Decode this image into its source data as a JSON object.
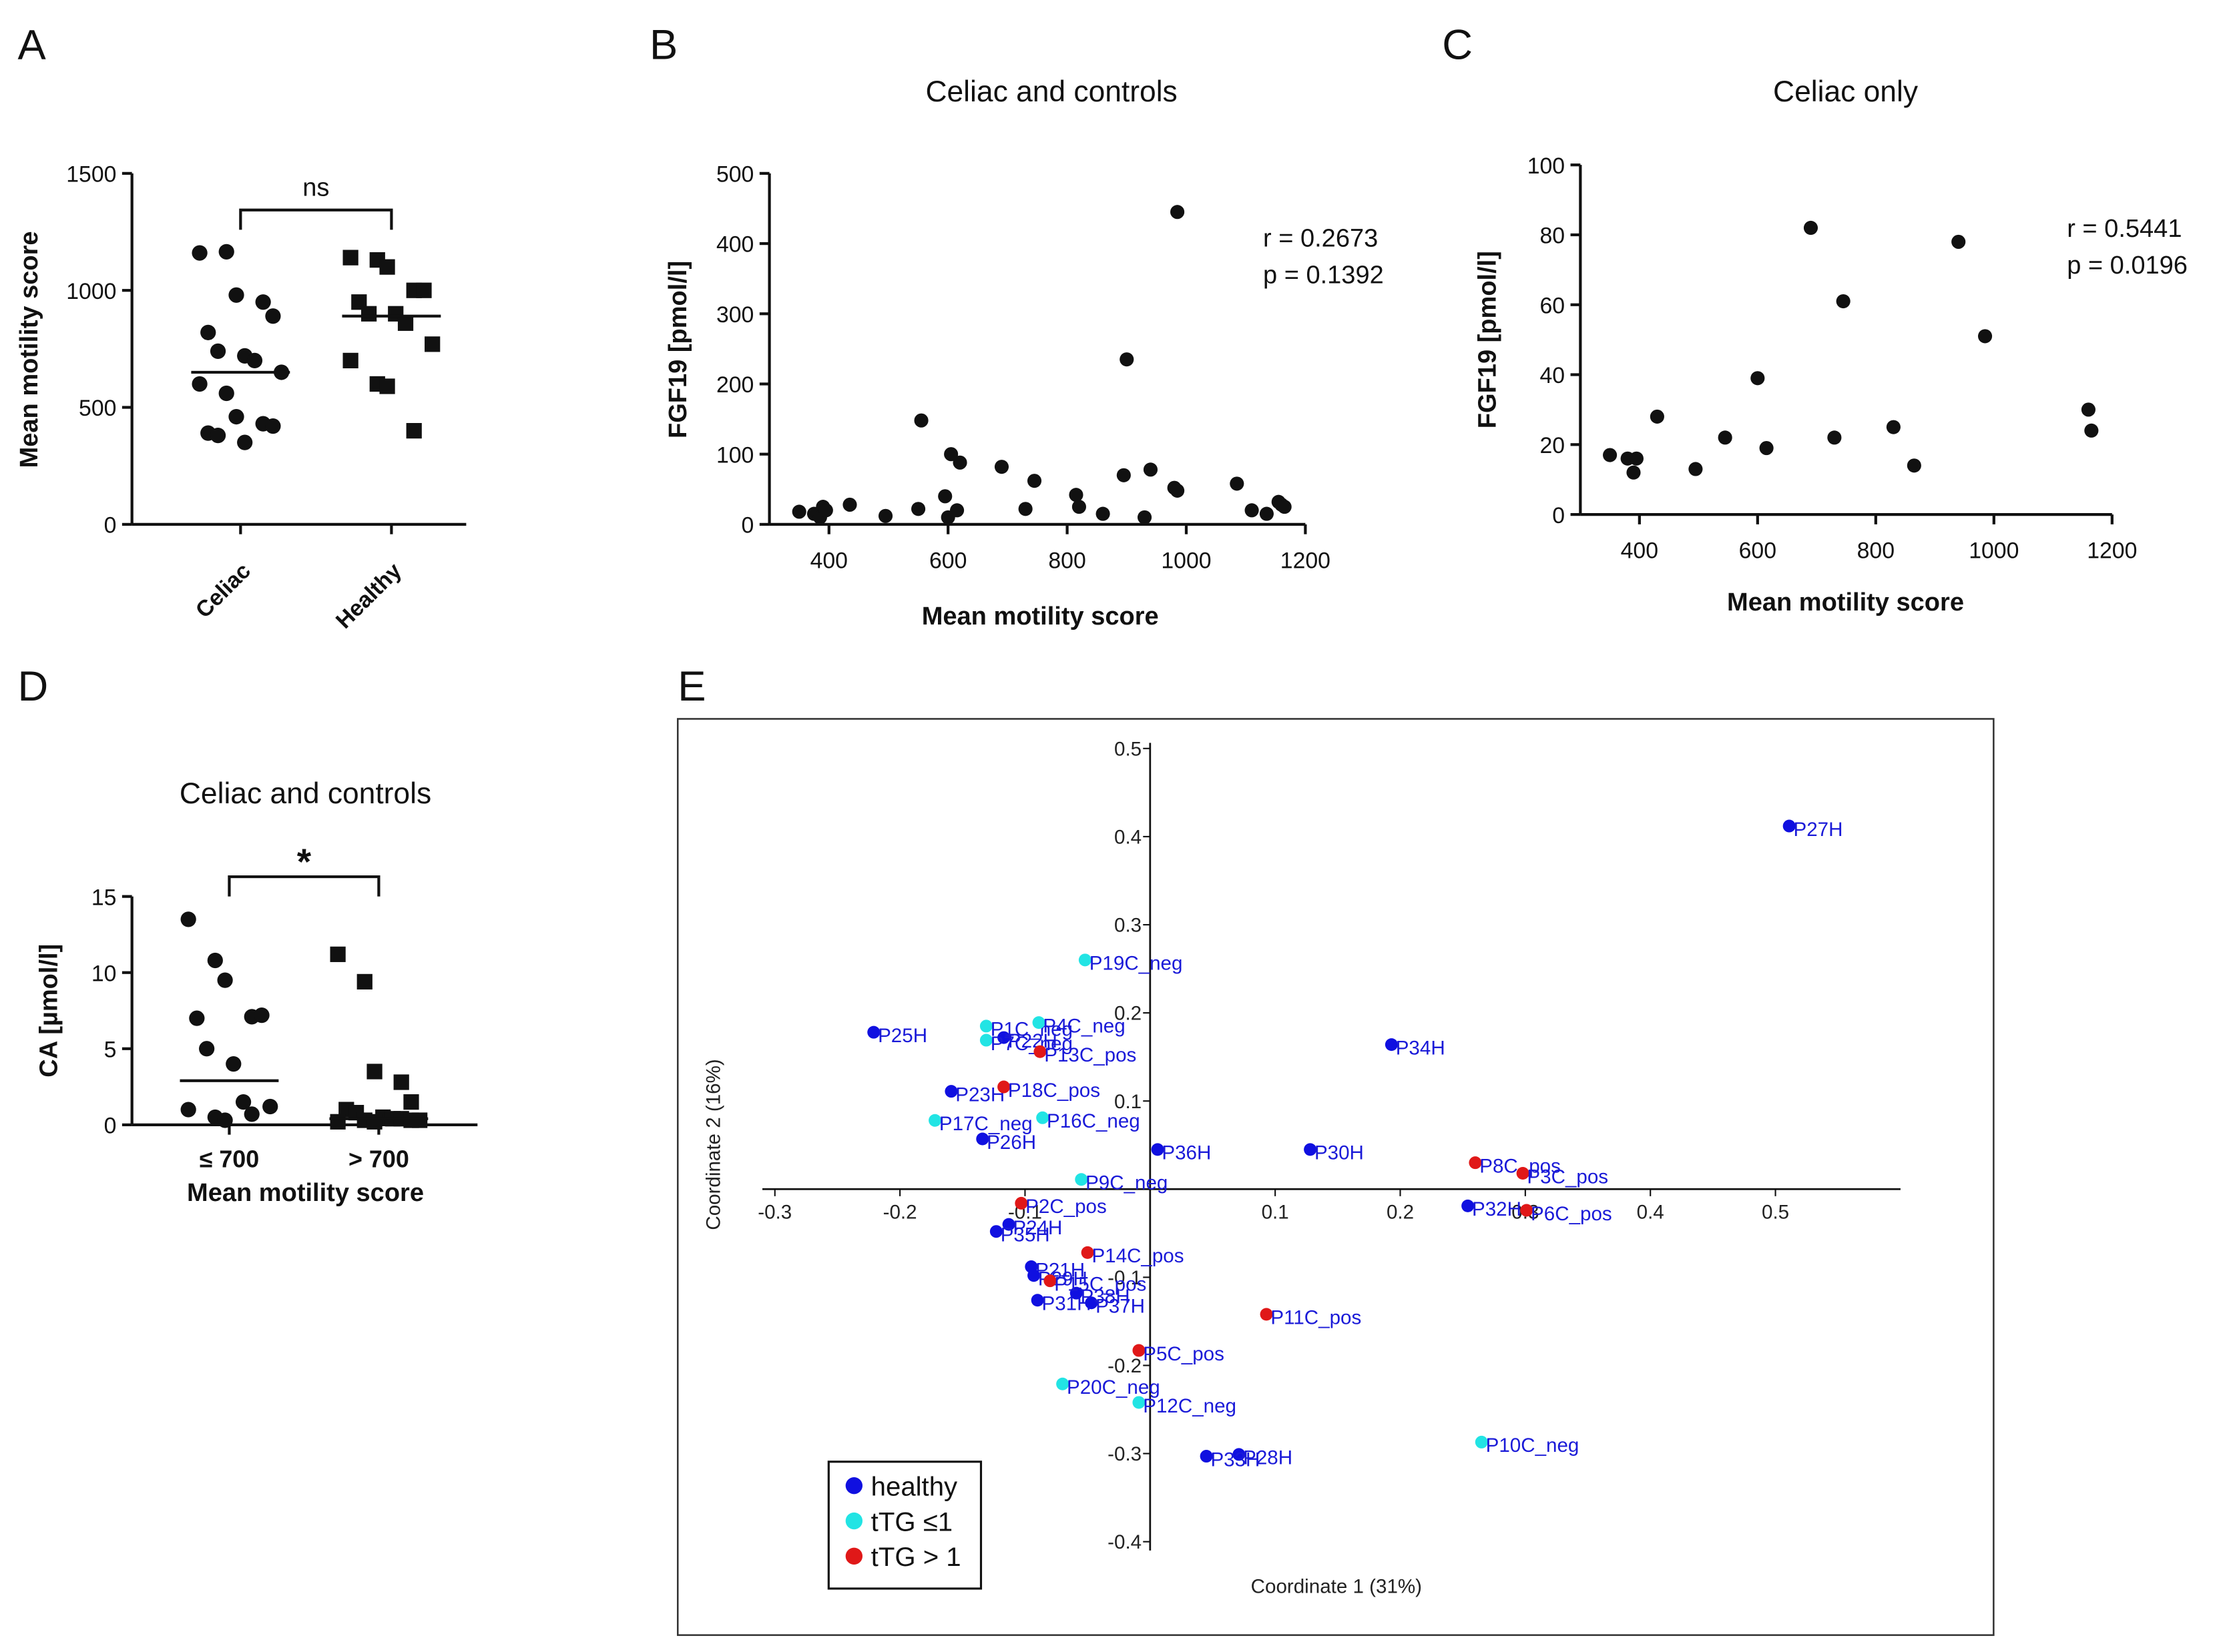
{
  "chart_data": [
    {
      "panel": "A",
      "type": "dot",
      "ylabel": "Mean motility score",
      "ylim": [
        0,
        1500
      ],
      "yticks": [
        0,
        500,
        1000,
        1500
      ],
      "categories": [
        "Celiac",
        "Healthy"
      ],
      "annotation": "ns",
      "groups": [
        {
          "marker": "circle",
          "values": [
            1160,
            1165,
            980,
            950,
            890,
            820,
            740,
            720,
            700,
            650,
            600,
            560,
            460,
            430,
            420,
            390,
            380,
            350
          ],
          "mean": 650
        },
        {
          "marker": "square",
          "values": [
            1140,
            1130,
            1100,
            1000,
            1000,
            950,
            900,
            900,
            860,
            770,
            700,
            600,
            590,
            400
          ],
          "mean": 890
        }
      ]
    },
    {
      "panel": "B",
      "type": "scatter",
      "title": "Celiac and controls",
      "xlabel": "Mean motility score",
      "ylabel": "FGF19 [pmol/l]",
      "xlim": [
        300,
        1200
      ],
      "xticks": [
        400,
        600,
        800,
        1000,
        1200
      ],
      "ylim": [
        0,
        500
      ],
      "yticks": [
        0,
        100,
        200,
        300,
        400,
        500
      ],
      "annotations": [
        "r = 0.2673",
        "p = 0.1392"
      ],
      "x": [
        350,
        375,
        385,
        390,
        395,
        435,
        495,
        550,
        555,
        595,
        600,
        605,
        615,
        620,
        690,
        730,
        745,
        815,
        820,
        860,
        895,
        900,
        930,
        940,
        980,
        985,
        985,
        1085,
        1110,
        1135,
        1155,
        1160,
        1165
      ],
      "values": [
        18,
        15,
        10,
        25,
        20,
        28,
        12,
        22,
        148,
        40,
        10,
        100,
        20,
        88,
        82,
        22,
        62,
        42,
        25,
        15,
        70,
        235,
        10,
        78,
        52,
        445,
        48,
        58,
        20,
        15,
        32,
        28,
        25
      ]
    },
    {
      "panel": "C",
      "type": "scatter",
      "title": "Celiac only",
      "xlabel": "Mean motility score",
      "ylabel": "FGF19 [pmol/l]",
      "xlim": [
        300,
        1200
      ],
      "xticks": [
        400,
        600,
        800,
        1000,
        1200
      ],
      "ylim": [
        0,
        100
      ],
      "yticks": [
        0,
        20,
        40,
        60,
        80,
        100
      ],
      "annotations": [
        "r = 0.5441",
        "p = 0.0196"
      ],
      "x": [
        350,
        380,
        390,
        395,
        430,
        495,
        545,
        600,
        615,
        690,
        730,
        745,
        830,
        865,
        940,
        985,
        1160,
        1165
      ],
      "values": [
        17,
        16,
        12,
        16,
        28,
        13,
        22,
        39,
        19,
        82,
        22,
        61,
        25,
        14,
        78,
        51,
        30,
        24
      ]
    },
    {
      "panel": "D",
      "type": "dot",
      "title": "Celiac and controls",
      "xlabel": "Mean motility score",
      "ylabel": "CA [µmol/l]",
      "ylim": [
        0,
        15
      ],
      "yticks": [
        0,
        5,
        10,
        15
      ],
      "categories": [
        "≤ 700",
        "> 700"
      ],
      "annotation": "*",
      "groups": [
        {
          "marker": "circle",
          "values": [
            13.5,
            10.8,
            9.5,
            7.1,
            7.2,
            7.0,
            5.0,
            4.0,
            1.5,
            1.2,
            1.0,
            0.5,
            0.3,
            0.7
          ],
          "mean": 2.9
        },
        {
          "marker": "square",
          "values": [
            11.2,
            9.4,
            3.5,
            2.8,
            1.5,
            1.0,
            0.8,
            0.5,
            0.4,
            0.3,
            0.2,
            0.3,
            0.2,
            0.4,
            0.3
          ],
          "mean": 0.4
        }
      ]
    },
    {
      "panel": "E",
      "type": "pcoa",
      "xlabel": "Coordinate 1 (31%)",
      "ylabel": "Coordinate 2 (16%)",
      "xlim": [
        -0.31,
        0.6
      ],
      "xticks": [
        -0.3,
        -0.2,
        -0.1,
        0.1,
        0.2,
        0.3,
        0.4,
        0.5
      ],
      "ylim": [
        -0.41,
        0.5
      ],
      "yticks": [
        -0.4,
        -0.3,
        -0.2,
        -0.1,
        0.1,
        0.2,
        0.3,
        0.4,
        0.5
      ],
      "legend": "lower left",
      "series": [
        {
          "name": "healthy",
          "color": "#1010e0",
          "labels": [
            "P27H",
            "P34H",
            "P25H",
            "P22H",
            "P23H",
            "P26H",
            "P36H",
            "P30H",
            "P32H",
            "P24H",
            "P35H",
            "P21H",
            "P29H",
            "P31H",
            "P37H",
            "P38H",
            "P28H",
            "P33H"
          ],
          "x": [
            0.511,
            0.193,
            -0.221,
            -0.117,
            -0.159,
            -0.134,
            0.006,
            0.128,
            0.254,
            -0.113,
            -0.123,
            -0.095,
            -0.093,
            -0.09,
            -0.047,
            -0.059,
            0.071,
            0.045
          ],
          "values": [
            0.412,
            0.164,
            0.178,
            0.172,
            0.111,
            0.057,
            0.045,
            0.045,
            -0.019,
            -0.04,
            -0.048,
            -0.088,
            -0.098,
            -0.126,
            -0.129,
            -0.118,
            -0.301,
            -0.303
          ]
        },
        {
          "name": "tTG ≤1",
          "color": "#22e4e4",
          "labels": [
            "P19C_neg",
            "P1C_neg",
            "P7C_neg",
            "P4C_neg",
            "P17C_neg",
            "P16C_neg",
            "P9C_neg",
            "P20C_neg",
            "P12C_neg",
            "P10C_neg"
          ],
          "x": [
            -0.052,
            -0.131,
            -0.131,
            -0.089,
            -0.172,
            -0.086,
            -0.055,
            -0.07,
            -0.009,
            0.265
          ],
          "values": [
            0.26,
            0.185,
            0.169,
            0.189,
            0.078,
            0.081,
            0.011,
            -0.221,
            -0.242,
            -0.287
          ]
        },
        {
          "name": "tTG > 1",
          "color": "#e01818",
          "labels": [
            "P13C_pos",
            "P18C_pos",
            "P8C_pos",
            "P3C_pos",
            "P6C_pos",
            "P2C_pos",
            "P14C_pos",
            "P15C_pos",
            "P11C_pos",
            "P5C_pos"
          ],
          "x": [
            -0.088,
            -0.117,
            0.26,
            0.298,
            0.301,
            -0.103,
            -0.05,
            -0.08,
            0.093,
            -0.009
          ],
          "values": [
            0.156,
            0.116,
            0.03,
            0.018,
            -0.024,
            -0.016,
            -0.072,
            -0.104,
            -0.142,
            -0.183
          ]
        }
      ]
    }
  ]
}
